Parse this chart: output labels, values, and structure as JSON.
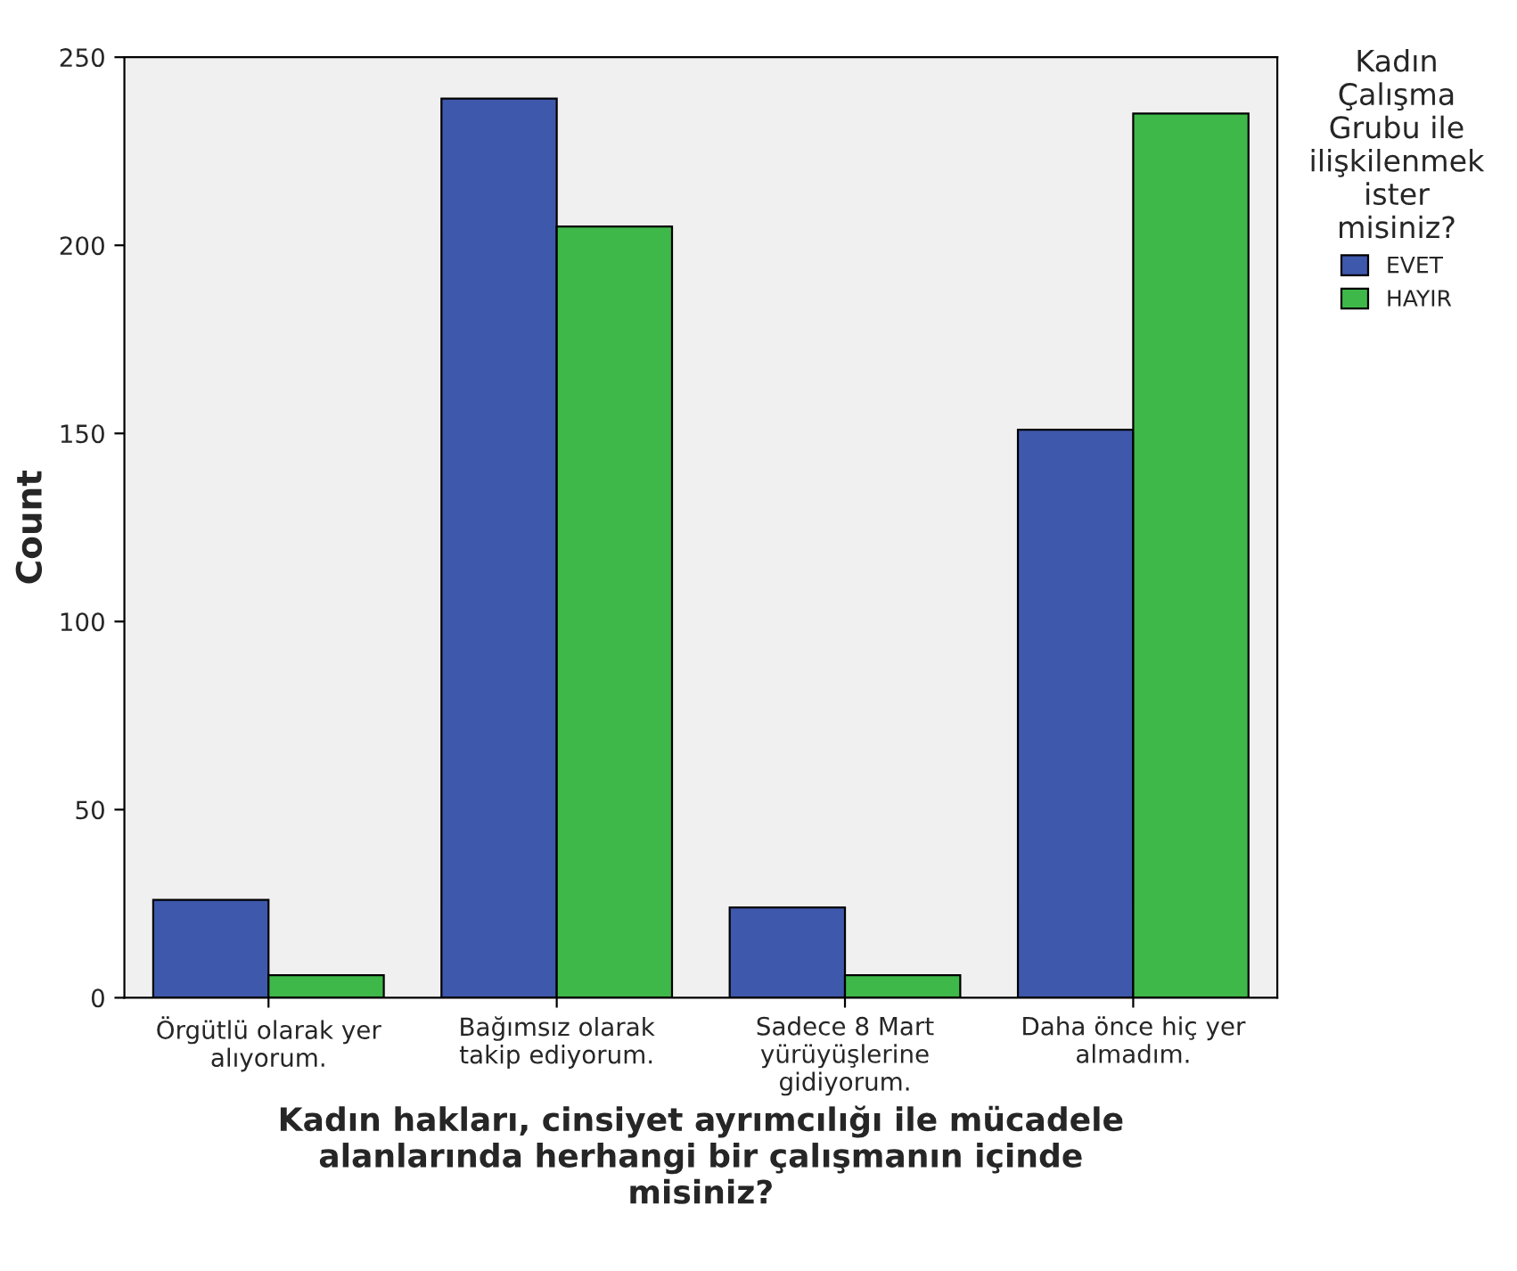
{
  "chart_data": {
    "type": "bar",
    "categories": [
      "Örgütlü olarak yer\nalıyorum.",
      "Bağımsız olarak\ntakip ediyorum.",
      "Sadece 8 Mart\nyürüyüşlerine\ngidiyorum.",
      "Daha önce hiç yer\nalmadım."
    ],
    "series": [
      {
        "name": "EVET",
        "color": "#3e58ac",
        "values": [
          26,
          239,
          24,
          151
        ]
      },
      {
        "name": "HAYIR",
        "color": "#3fb84a",
        "values": [
          6,
          205,
          6,
          235
        ]
      }
    ],
    "xlabel": "Kadın hakları, cinsiyet ayrımcılığı ile mücadele\nalanlarında herhangi bir çalışmanın içinde\nmisiniz?",
    "ylabel": "Count",
    "legend_title": "Kadın\nÇalışma\nGrubu ile\nilişkilenmek\nister\nmisiniz?",
    "legend": "top right",
    "ylim": [
      0,
      250
    ],
    "yticks": [
      0,
      50,
      100,
      150,
      200,
      250
    ],
    "grid": false
  }
}
